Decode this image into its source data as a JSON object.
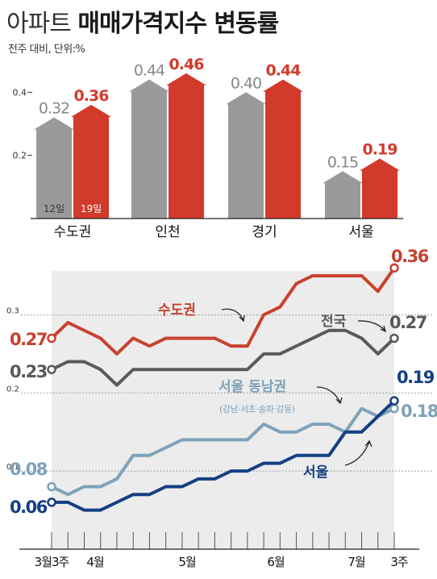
{
  "title_light": "아파트",
  "title_bold": "매매가격지수 변동률",
  "subtitle": "전주 대비, 단위:%",
  "colors": {
    "gray": "#9a9a9a",
    "red": "#d23a2c",
    "blue": "#153f82",
    "lightblue": "#7fa2b9",
    "redline": "#c8412f",
    "grayline": "#5a5a5a"
  },
  "chart_data": [
    {
      "type": "bar",
      "categories": [
        "수도권",
        "인천",
        "경기",
        "서울"
      ],
      "series": [
        {
          "name": "12일",
          "values": [
            0.32,
            0.44,
            0.4,
            0.15
          ]
        },
        {
          "name": "19일",
          "values": [
            0.36,
            0.46,
            0.44,
            0.19
          ]
        }
      ],
      "value_labels": [
        [
          "0.32",
          "0.44",
          "0.40",
          "0.15"
        ],
        [
          "0.36",
          "0.46",
          "0.44",
          "0.19"
        ]
      ],
      "yticks": [
        "0.4",
        "0.2"
      ],
      "ylim": [
        0,
        0.48
      ]
    },
    {
      "type": "line",
      "xticks": [
        "3월3주",
        "4월",
        "5월",
        "6월",
        "7월",
        "3주"
      ],
      "yticks": [
        "0.3",
        "0.2",
        "0.1"
      ],
      "ylim": [
        0,
        0.4
      ],
      "series": [
        {
          "name": "수도권",
          "values": [
            0.27,
            0.29,
            0.28,
            0.27,
            0.25,
            0.27,
            0.26,
            0.27,
            0.27,
            0.27,
            0.27,
            0.26,
            0.26,
            0.3,
            0.31,
            0.34,
            0.35,
            0.35,
            0.35,
            0.35,
            0.33,
            0.36
          ],
          "start_label": "0.27",
          "end_label": "0.36"
        },
        {
          "name": "전국",
          "values": [
            0.23,
            0.24,
            0.24,
            0.23,
            0.21,
            0.23,
            0.23,
            0.23,
            0.23,
            0.23,
            0.23,
            0.23,
            0.23,
            0.25,
            0.25,
            0.26,
            0.27,
            0.28,
            0.28,
            0.27,
            0.25,
            0.27
          ],
          "start_label": "0.23",
          "end_label": "0.27"
        },
        {
          "name": "서울 동남권",
          "name_note": "(강남·서초·송파·강동)",
          "values": [
            0.08,
            0.07,
            0.08,
            0.08,
            0.09,
            0.12,
            0.12,
            0.13,
            0.14,
            0.14,
            0.14,
            0.14,
            0.14,
            0.16,
            0.15,
            0.15,
            0.16,
            0.16,
            0.15,
            0.18,
            0.17,
            0.18
          ],
          "start_label": "0.08",
          "end_label": "0.18"
        },
        {
          "name": "서울",
          "values": [
            0.06,
            0.06,
            0.05,
            0.05,
            0.06,
            0.07,
            0.07,
            0.08,
            0.08,
            0.09,
            0.09,
            0.1,
            0.1,
            0.11,
            0.11,
            0.12,
            0.12,
            0.12,
            0.15,
            0.15,
            0.17,
            0.19
          ],
          "start_label": "0.06",
          "end_label": "0.19"
        }
      ]
    }
  ]
}
